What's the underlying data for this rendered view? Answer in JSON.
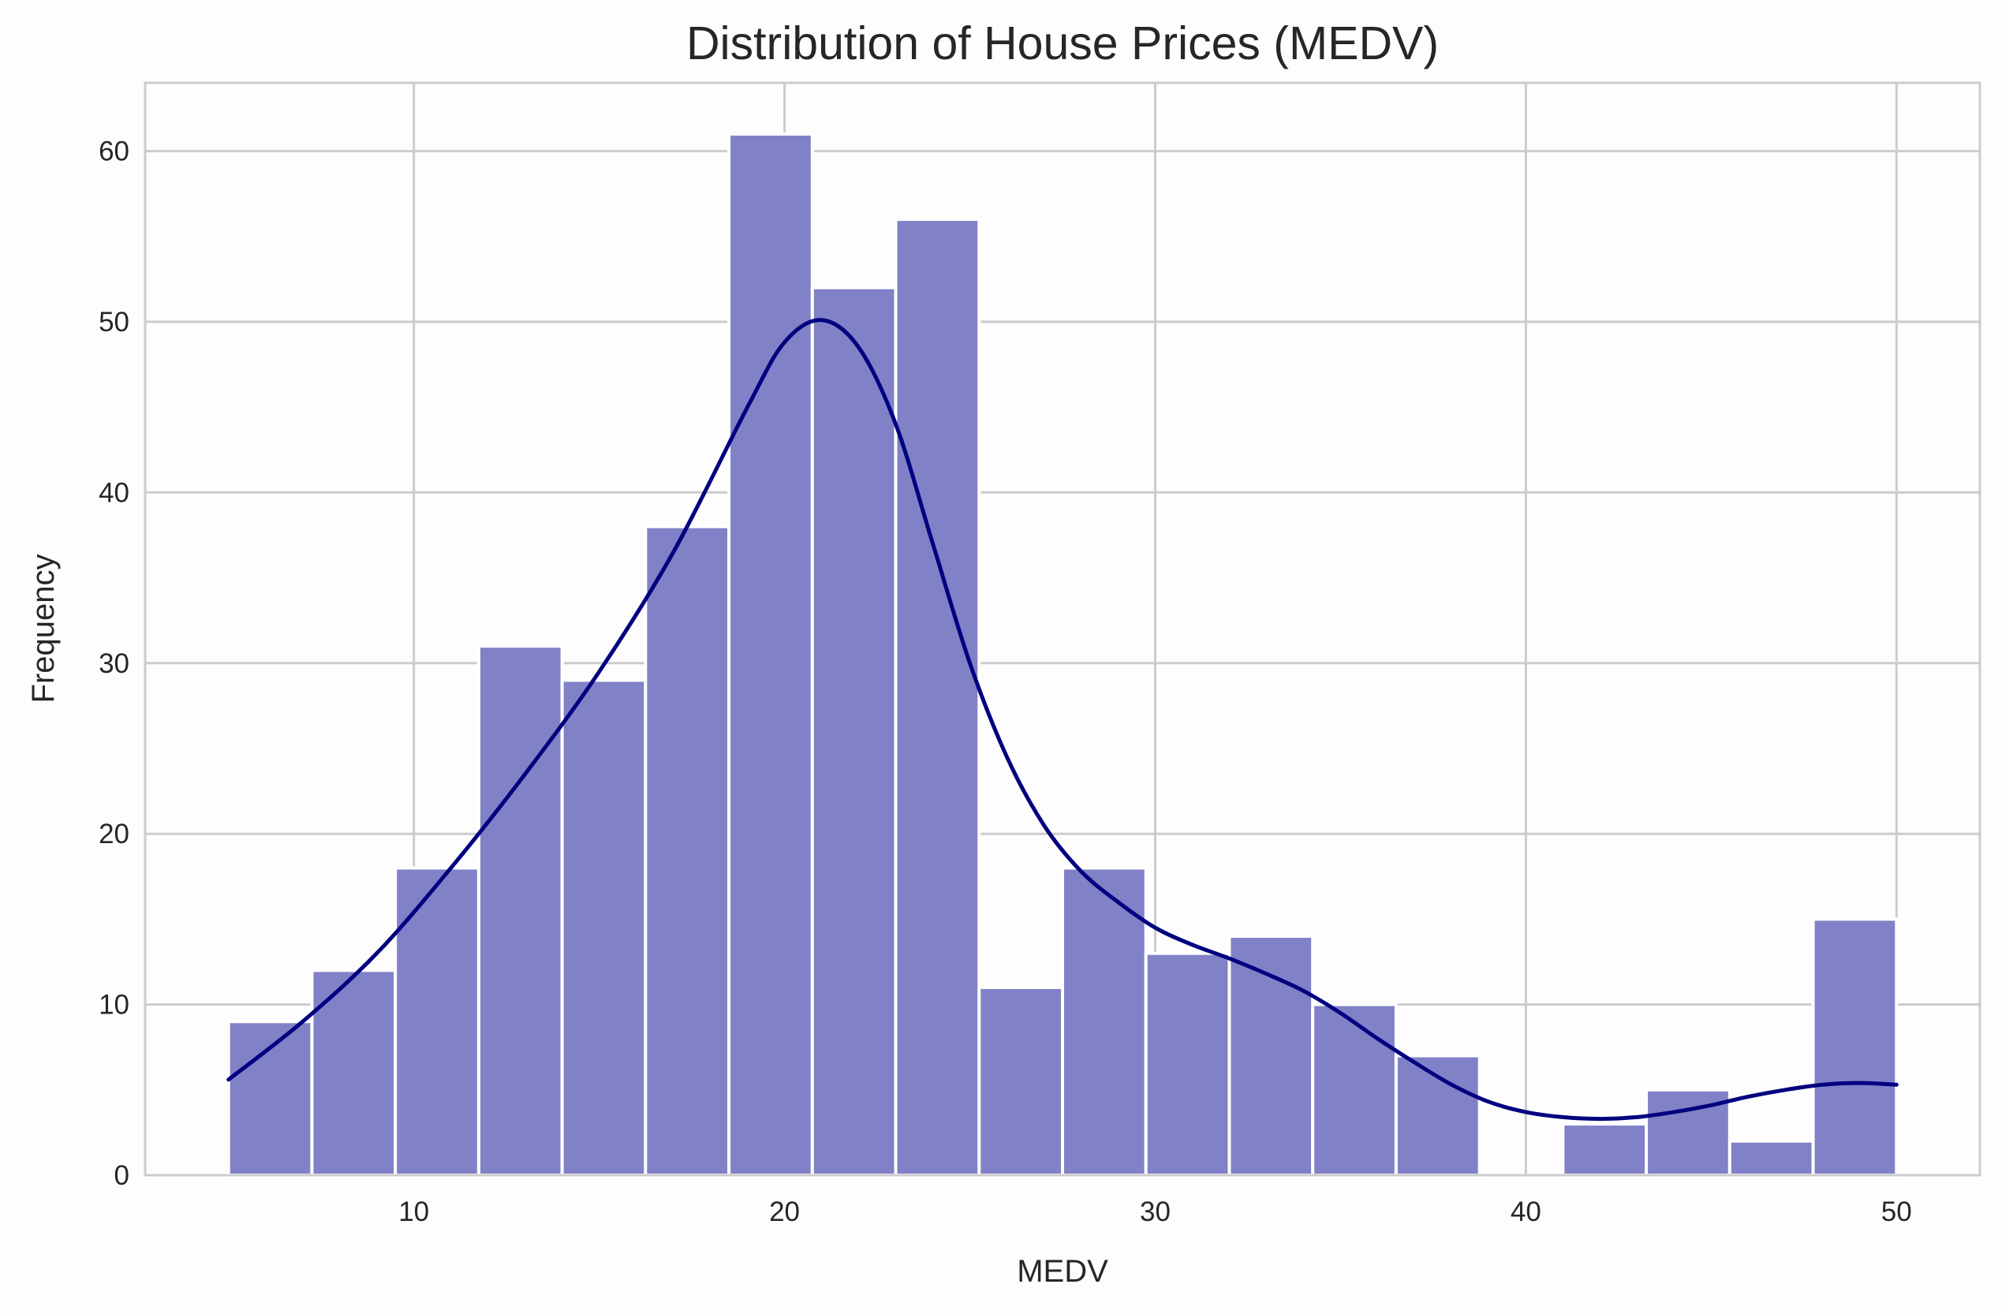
{
  "chart_data": {
    "type": "bar",
    "title": "Distribution of House Prices (MEDV)",
    "xlabel": "MEDV",
    "ylabel": "Frequency",
    "xlim": [
      2.75,
      52.25
    ],
    "ylim": [
      0,
      64
    ],
    "x_ticks": [
      10,
      20,
      30,
      40,
      50
    ],
    "y_ticks": [
      0,
      10,
      20,
      30,
      40,
      50,
      60
    ],
    "grid": true,
    "bar_color": "#8080c6",
    "kde_color": "#000080",
    "grid_color": "#cccccc",
    "bins": [
      {
        "x0": 5.0,
        "x1": 7.25,
        "count": 9
      },
      {
        "x0": 7.25,
        "x1": 9.5,
        "count": 12
      },
      {
        "x0": 9.5,
        "x1": 11.75,
        "count": 18
      },
      {
        "x0": 11.75,
        "x1": 14.0,
        "count": 31
      },
      {
        "x0": 14.0,
        "x1": 16.25,
        "count": 29
      },
      {
        "x0": 16.25,
        "x1": 18.5,
        "count": 38
      },
      {
        "x0": 18.5,
        "x1": 20.75,
        "count": 61
      },
      {
        "x0": 20.75,
        "x1": 23.0,
        "count": 52
      },
      {
        "x0": 23.0,
        "x1": 25.25,
        "count": 56
      },
      {
        "x0": 25.25,
        "x1": 27.5,
        "count": 11
      },
      {
        "x0": 27.5,
        "x1": 29.75,
        "count": 18
      },
      {
        "x0": 29.75,
        "x1": 32.0,
        "count": 13
      },
      {
        "x0": 32.0,
        "x1": 34.25,
        "count": 14
      },
      {
        "x0": 34.25,
        "x1": 36.5,
        "count": 10
      },
      {
        "x0": 36.5,
        "x1": 38.75,
        "count": 7
      },
      {
        "x0": 38.75,
        "x1": 41.0,
        "count": 0
      },
      {
        "x0": 41.0,
        "x1": 43.25,
        "count": 3
      },
      {
        "x0": 43.25,
        "x1": 45.5,
        "count": 5
      },
      {
        "x0": 45.5,
        "x1": 47.75,
        "count": 2
      },
      {
        "x0": 47.75,
        "x1": 50.0,
        "count": 15
      }
    ],
    "kde_curve": [
      [
        5.0,
        5.6
      ],
      [
        7.0,
        9.0
      ],
      [
        9.0,
        13.0
      ],
      [
        11.0,
        18.0
      ],
      [
        13.0,
        23.5
      ],
      [
        15.0,
        29.5
      ],
      [
        17.0,
        36.5
      ],
      [
        19.0,
        45.0
      ],
      [
        20.0,
        48.8
      ],
      [
        21.0,
        50.1
      ],
      [
        22.0,
        48.5
      ],
      [
        23.0,
        44.0
      ],
      [
        24.0,
        37.0
      ],
      [
        25.0,
        30.0
      ],
      [
        26.0,
        24.5
      ],
      [
        27.0,
        20.5
      ],
      [
        28.0,
        17.8
      ],
      [
        29.0,
        16.0
      ],
      [
        30.0,
        14.5
      ],
      [
        31.0,
        13.5
      ],
      [
        32.0,
        12.7
      ],
      [
        33.0,
        11.8
      ],
      [
        34.0,
        10.8
      ],
      [
        35.0,
        9.5
      ],
      [
        36.0,
        8.0
      ],
      [
        37.0,
        6.6
      ],
      [
        38.0,
        5.3
      ],
      [
        39.0,
        4.3
      ],
      [
        40.0,
        3.7
      ],
      [
        41.0,
        3.4
      ],
      [
        42.0,
        3.3
      ],
      [
        43.0,
        3.4
      ],
      [
        44.0,
        3.7
      ],
      [
        45.0,
        4.1
      ],
      [
        46.0,
        4.6
      ],
      [
        47.0,
        5.0
      ],
      [
        48.0,
        5.3
      ],
      [
        49.0,
        5.4
      ],
      [
        50.0,
        5.3
      ]
    ]
  }
}
